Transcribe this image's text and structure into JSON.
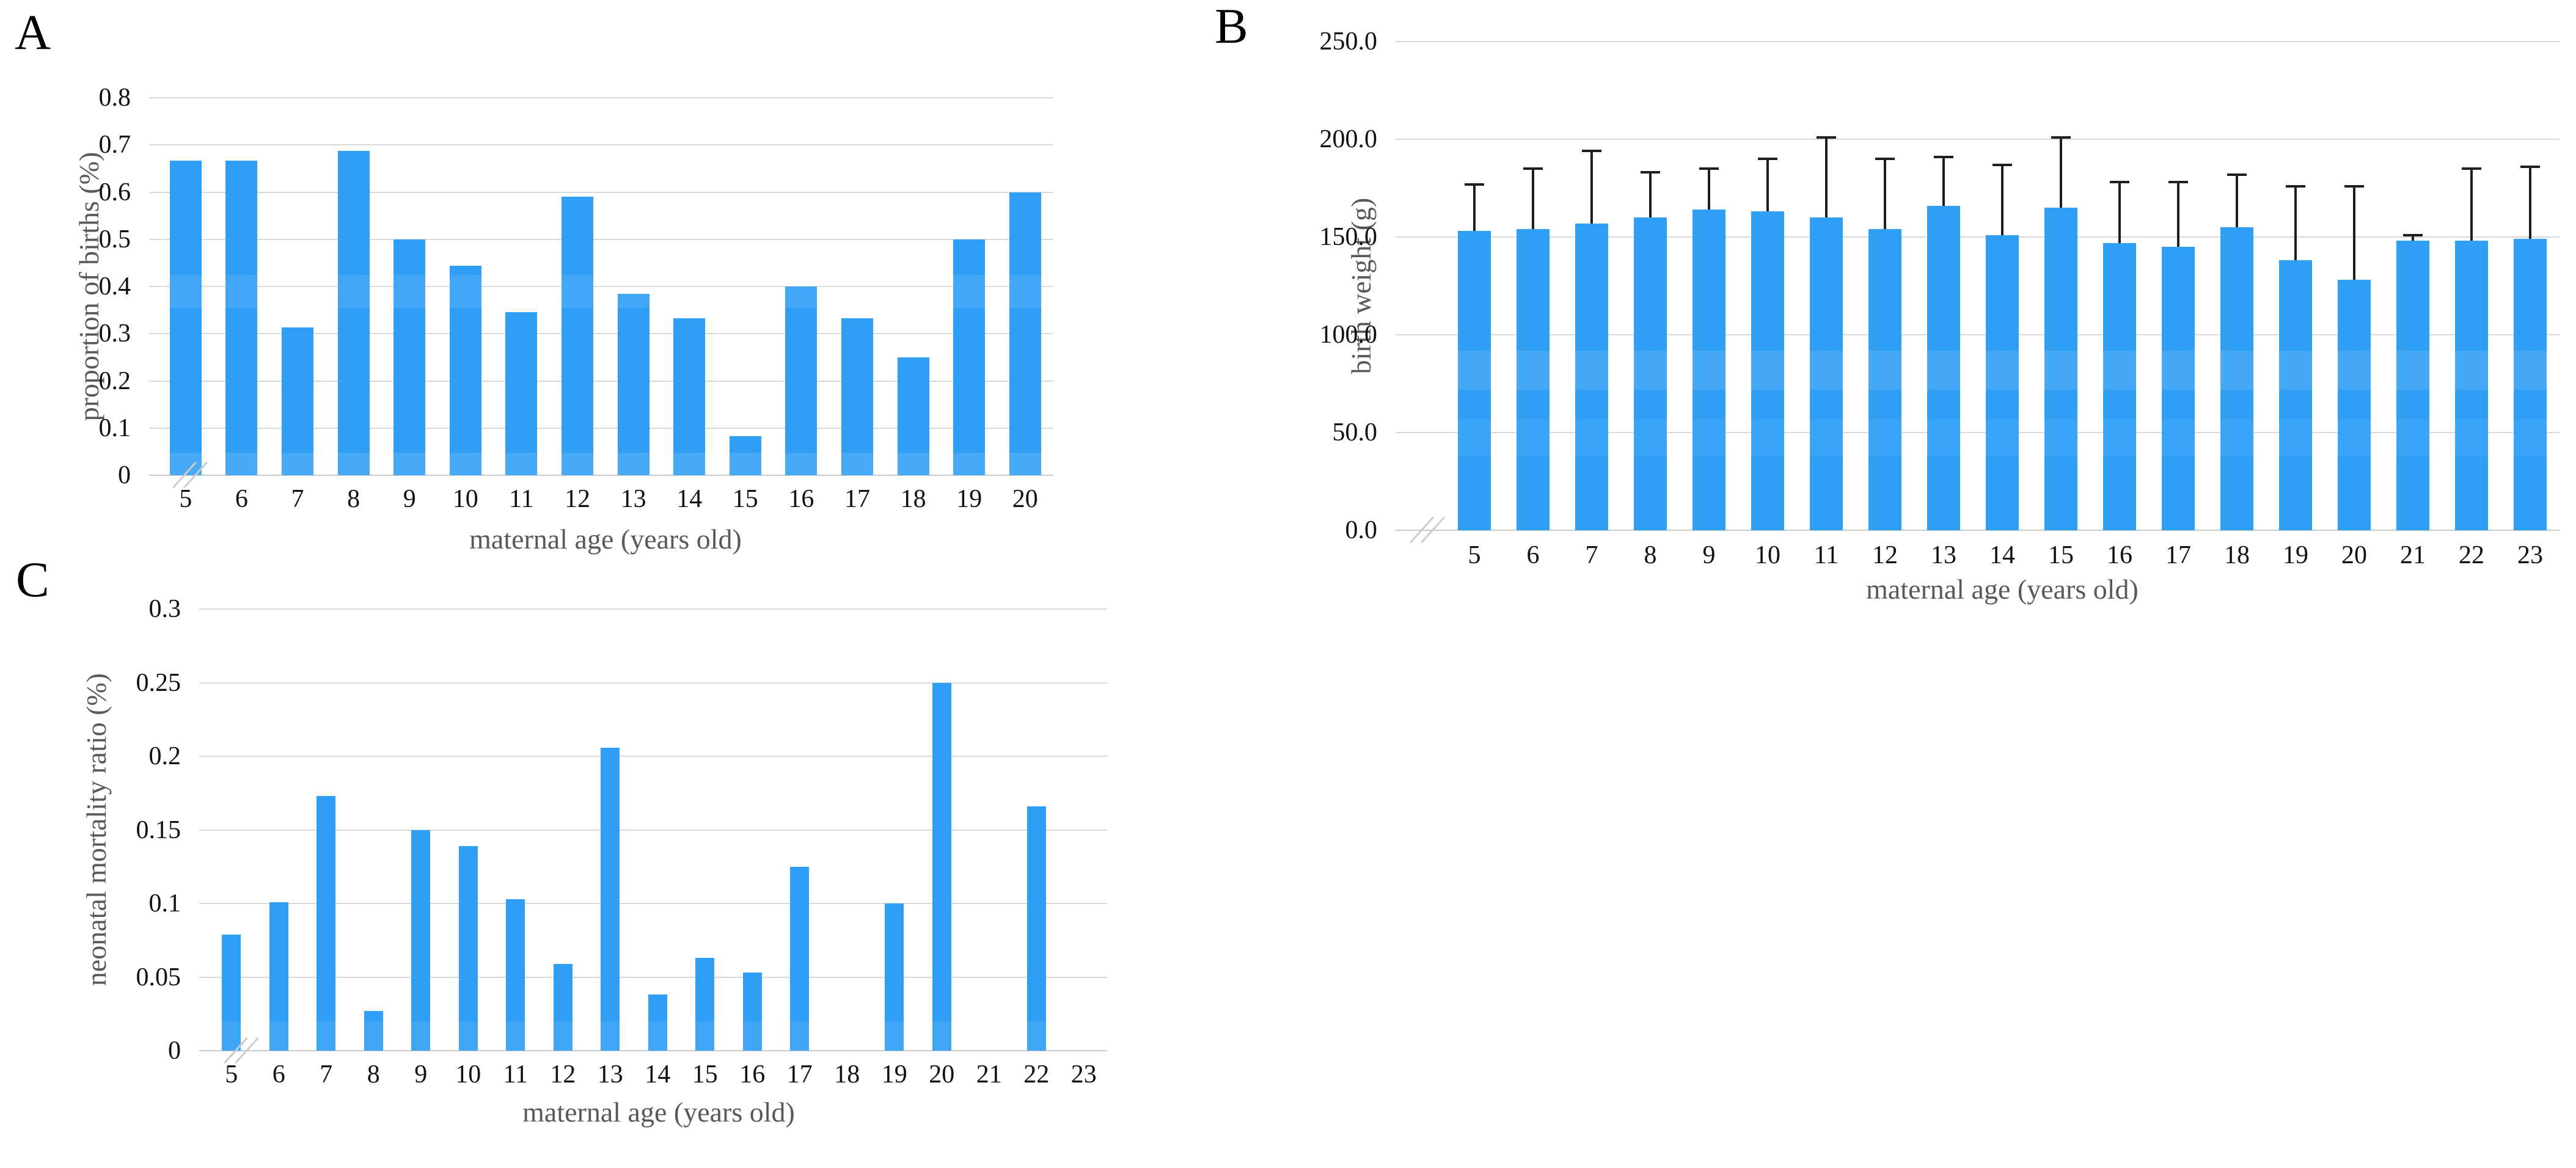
{
  "colors": {
    "bar": "#2f9ff6",
    "bar_band_highlight": "#4fa9f2",
    "gridline": "#d9d9d9",
    "axis_line": "#c9c9c9",
    "tick_text": "#111111",
    "axis_title_text": "#595959",
    "error_bar": "#1f1f1f",
    "axis_break": "#cbcbcb",
    "background": "#ffffff"
  },
  "chart_data": [
    {
      "type": "bar",
      "panel": "A",
      "title": "",
      "xlabel": "maternal age (years old)",
      "ylabel": "proportion of births (%)",
      "categories": [
        "5",
        "6",
        "7",
        "8",
        "9",
        "10",
        "11",
        "12",
        "13",
        "14",
        "15",
        "16",
        "17",
        "18",
        "19",
        "20"
      ],
      "values": [
        0.667,
        0.667,
        0.313,
        0.688,
        0.5,
        0.444,
        0.345,
        0.59,
        0.385,
        0.333,
        0.083,
        0.4,
        0.333,
        0.25,
        0.5,
        0.6
      ],
      "ylim": [
        0,
        0.8
      ],
      "ytick_labels": [
        "0.8",
        "0.7",
        "0.6",
        "0.5",
        "0.4",
        "0.3",
        "0.2",
        "0.1",
        "0"
      ],
      "grid": true,
      "legend": "none",
      "axis_break_on_x_axis": true
    },
    {
      "type": "bar",
      "panel": "B",
      "title": "",
      "xlabel": "maternal age (years old)",
      "ylabel": "birth weight (g)",
      "categories": [
        "5",
        "6",
        "7",
        "8",
        "9",
        "10",
        "11",
        "12",
        "13",
        "14",
        "15",
        "16",
        "17",
        "18",
        "19",
        "20",
        "21",
        "22",
        "23"
      ],
      "values": [
        153,
        154,
        157,
        160,
        164,
        163,
        160,
        154,
        166,
        151,
        165,
        147,
        145,
        155,
        138,
        128,
        148,
        148,
        149
      ],
      "error_upper": [
        177,
        185,
        194,
        183,
        185,
        190,
        201,
        190,
        191,
        187,
        201,
        178,
        178,
        182,
        176,
        176,
        151,
        185,
        186
      ],
      "error_bar_style": "upper whisker with cap",
      "ylim": [
        0,
        250
      ],
      "ytick_labels": [
        "250.0",
        "200.0",
        "150.0",
        "100.0",
        "50.0",
        "0.0"
      ],
      "grid": true,
      "legend": "none",
      "axis_break_on_x_axis": true
    },
    {
      "type": "bar",
      "panel": "C",
      "title": "",
      "xlabel": "maternal age (years old)",
      "ylabel": "neonatal mortality ratio (%)",
      "categories": [
        "5",
        "6",
        "7",
        "8",
        "9",
        "10",
        "11",
        "12",
        "13",
        "14",
        "15",
        "16",
        "17",
        "18",
        "19",
        "20",
        "21",
        "22",
        "23"
      ],
      "values": [
        0.079,
        0.101,
        0.173,
        0.027,
        0.15,
        0.139,
        0.103,
        0.059,
        0.206,
        0.038,
        0.063,
        0.053,
        0.125,
        0,
        0.1,
        0.25,
        0,
        0.166,
        0
      ],
      "ylim": [
        0,
        0.3
      ],
      "ytick_labels": [
        "0.3",
        "0.25",
        "0.2",
        "0.15",
        "0.1",
        "0.05",
        "0"
      ],
      "grid": true,
      "legend": "none",
      "axis_break_on_x_axis": true
    }
  ]
}
